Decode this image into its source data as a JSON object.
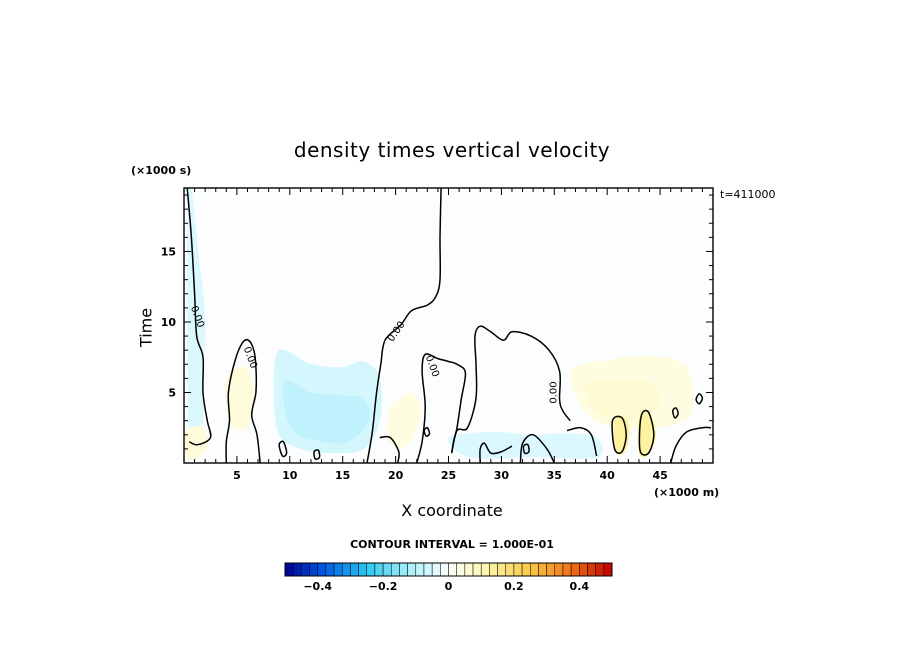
{
  "chart_data": {
    "type": "contour",
    "title": "density times vertical velocity",
    "xlabel": "X coordinate",
    "ylabel": "Time",
    "x_unit": "(×1000 m)",
    "y_unit": "(×1000 s)",
    "time_stamp": "t=411000",
    "xlim": [
      0,
      50
    ],
    "ylim": [
      0,
      19.5
    ],
    "x_ticks": [
      5,
      10,
      15,
      20,
      25,
      30,
      35,
      40,
      45
    ],
    "y_ticks": [
      5,
      10,
      15
    ],
    "contour_interval_text": "CONTOUR INTERVAL = 1.000E-01",
    "contour_label": "0.00",
    "colorbar": {
      "min": -0.5,
      "max": 0.5,
      "n_bins": 40,
      "tick_values": [
        -0.4,
        -0.2,
        0,
        0.2,
        0.4
      ],
      "tick_labels": [
        "−0.4",
        "−0.2",
        "0",
        "0.2",
        "0.4"
      ]
    },
    "zero_contour_label_positions": [
      {
        "x": 1.0,
        "y": 10.3
      },
      {
        "x": 6.0,
        "y": 7.4
      },
      {
        "x": 20.3,
        "y": 9.2
      },
      {
        "x": 23.2,
        "y": 6.8
      },
      {
        "x": 35.2,
        "y": 5.0
      }
    ],
    "fill_regions": [
      {
        "level": -0.05,
        "points": [
          [
            0.4,
            19.5
          ],
          [
            1.5,
            14
          ],
          [
            2,
            10
          ],
          [
            1.8,
            6
          ],
          [
            1.8,
            3
          ],
          [
            0.6,
            2
          ],
          [
            0.4,
            0.8
          ]
        ]
      },
      {
        "level": -0.06,
        "points": [
          [
            9,
            8
          ],
          [
            12,
            7
          ],
          [
            15,
            6.8
          ],
          [
            17,
            7.2
          ],
          [
            18.5,
            6
          ],
          [
            18.5,
            3
          ],
          [
            17,
            1
          ],
          [
            14,
            0.7
          ],
          [
            11,
            1
          ],
          [
            9,
            2
          ],
          [
            8.5,
            5
          ]
        ]
      },
      {
        "level": -0.09,
        "points": [
          [
            9.5,
            5.8
          ],
          [
            12,
            5
          ],
          [
            15,
            4.8
          ],
          [
            17,
            4.5
          ],
          [
            17.5,
            3
          ],
          [
            15.5,
            1.5
          ],
          [
            12.5,
            1.6
          ],
          [
            10,
            2.6
          ]
        ]
      },
      {
        "level": -0.05,
        "points": [
          [
            25,
            1.8
          ],
          [
            29,
            2.2
          ],
          [
            33,
            2
          ],
          [
            36,
            2.1
          ],
          [
            39,
            1.8
          ],
          [
            39,
            0.4
          ],
          [
            33,
            0.4
          ],
          [
            27,
            0.4
          ]
        ]
      },
      {
        "level": 0.04,
        "points": [
          [
            36.5,
            6.5
          ],
          [
            40,
            7.3
          ],
          [
            44,
            7.6
          ],
          [
            47.5,
            6.8
          ],
          [
            48,
            3.5
          ],
          [
            45,
            2.5
          ],
          [
            41,
            2.5
          ],
          [
            38,
            3.5
          ]
        ]
      },
      {
        "level": 0.06,
        "points": [
          [
            38,
            5.5
          ],
          [
            41,
            6
          ],
          [
            44,
            5.7
          ],
          [
            45,
            4
          ],
          [
            42,
            3
          ],
          [
            39,
            3.5
          ]
        ]
      },
      {
        "level": 0.05,
        "points": [
          [
            4,
            6
          ],
          [
            5.8,
            6.8
          ],
          [
            6.6,
            5
          ],
          [
            6,
            2.5
          ],
          [
            4.4,
            2.8
          ]
        ]
      },
      {
        "level": 0.04,
        "points": [
          [
            19.5,
            3.8
          ],
          [
            21.5,
            5
          ],
          [
            22.5,
            3.5
          ],
          [
            21,
            1.2
          ],
          [
            19.3,
            1.6
          ]
        ]
      },
      {
        "level": 0.05,
        "points": [
          [
            0.2,
            2.3
          ],
          [
            1.8,
            2.5
          ],
          [
            2.2,
            1
          ],
          [
            1,
            0.3
          ],
          [
            0.2,
            0.5
          ]
        ]
      },
      {
        "level": 0.13,
        "points": [
          [
            40.7,
            3
          ],
          [
            41.8,
            3.2
          ],
          [
            42.1,
            2
          ],
          [
            41.6,
            0.7
          ],
          [
            40.8,
            0.9
          ]
        ]
      },
      {
        "level": 0.13,
        "points": [
          [
            43,
            3.2
          ],
          [
            44,
            3.5
          ],
          [
            44.6,
            2
          ],
          [
            43.9,
            0.6
          ],
          [
            43,
            0.7
          ]
        ]
      }
    ],
    "zero_contours": [
      {
        "closed": false,
        "points": [
          [
            0.3,
            19.5
          ],
          [
            0.7,
            16
          ],
          [
            1,
            12
          ],
          [
            1.2,
            9
          ],
          [
            1.8,
            7.5
          ],
          [
            1.8,
            5
          ],
          [
            2.2,
            3
          ],
          [
            2.5,
            1.8
          ],
          [
            1.3,
            1.3
          ],
          [
            0.5,
            1.5
          ]
        ]
      },
      {
        "closed": false,
        "points": [
          [
            24.3,
            19.5
          ],
          [
            24.2,
            16
          ],
          [
            24.2,
            13
          ],
          [
            23.8,
            11.8
          ],
          [
            23,
            11.2
          ],
          [
            21.5,
            10.8
          ],
          [
            20.5,
            9.8
          ],
          [
            19,
            8.7
          ],
          [
            18.6,
            7
          ],
          [
            18.2,
            5
          ],
          [
            17.8,
            2.2
          ],
          [
            17.3,
            0
          ]
        ]
      },
      {
        "closed": false,
        "points": [
          [
            4,
            0
          ],
          [
            4,
            1.5
          ],
          [
            4.3,
            3
          ],
          [
            4.2,
            5
          ],
          [
            4.8,
            7.2
          ],
          [
            5.5,
            8.5
          ],
          [
            6.1,
            8.7
          ],
          [
            6.6,
            8
          ],
          [
            6.8,
            6.8
          ],
          [
            6.8,
            5
          ],
          [
            6.4,
            3.4
          ],
          [
            6.9,
            2
          ],
          [
            7.2,
            0
          ]
        ]
      },
      {
        "closed": false,
        "points": [
          [
            22,
            0
          ],
          [
            22.5,
            1.5
          ],
          [
            22.8,
            4
          ],
          [
            22.5,
            6.5
          ],
          [
            22.8,
            7.7
          ],
          [
            24,
            7.4
          ],
          [
            25,
            7.2
          ],
          [
            25.8,
            7
          ],
          [
            26.6,
            6.4
          ],
          [
            26.2,
            4.5
          ],
          [
            25.8,
            2.5
          ],
          [
            25.5,
            1.6
          ],
          [
            25.3,
            0.7
          ]
        ]
      },
      {
        "closed": false,
        "points": [
          [
            25.3,
            0.7
          ],
          [
            25.8,
            2.3
          ],
          [
            26.8,
            2.5
          ],
          [
            27.6,
            4.6
          ],
          [
            27.6,
            7
          ],
          [
            27.5,
            9
          ],
          [
            28,
            9.7
          ],
          [
            29,
            9.3
          ],
          [
            30.2,
            8.7
          ],
          [
            31,
            9.3
          ],
          [
            32.8,
            9
          ],
          [
            34.5,
            8
          ],
          [
            35.5,
            6.5
          ],
          [
            35.5,
            4.5
          ],
          [
            35.8,
            3.7
          ],
          [
            36.5,
            3
          ]
        ]
      },
      {
        "closed": false,
        "points": [
          [
            36.2,
            2.3
          ],
          [
            37.5,
            2.5
          ],
          [
            38.5,
            2
          ],
          [
            39,
            0.5
          ]
        ]
      },
      {
        "closed": false,
        "points": [
          [
            18.5,
            1.8
          ],
          [
            19.5,
            1.8
          ],
          [
            20.3,
            0.8
          ],
          [
            20.2,
            0
          ]
        ]
      },
      {
        "closed": false,
        "points": [
          [
            28,
            0
          ],
          [
            28,
            1
          ],
          [
            28.4,
            1.4
          ],
          [
            29,
            0.7
          ],
          [
            30,
            0.8
          ],
          [
            31,
            1.2
          ]
        ]
      },
      {
        "closed": false,
        "points": [
          [
            31.8,
            0
          ],
          [
            32,
            1.4
          ],
          [
            33,
            2
          ],
          [
            34.3,
            1
          ],
          [
            35,
            0
          ]
        ]
      },
      {
        "closed": true,
        "points": [
          [
            40.5,
            3
          ],
          [
            41.4,
            3.2
          ],
          [
            41.8,
            2
          ],
          [
            41.4,
            0.8
          ],
          [
            40.7,
            1
          ]
        ]
      },
      {
        "closed": true,
        "points": [
          [
            43.2,
            3.3
          ],
          [
            43.9,
            3.6
          ],
          [
            44.4,
            2
          ],
          [
            43.9,
            0.7
          ],
          [
            43.1,
            0.9
          ]
        ]
      },
      {
        "closed": false,
        "points": [
          [
            46,
            0
          ],
          [
            46.5,
            1.2
          ],
          [
            47.5,
            2.2
          ],
          [
            49,
            2.5
          ],
          [
            49.8,
            2.5
          ]
        ]
      },
      {
        "closed": true,
        "points": [
          [
            46.2,
            3.7
          ],
          [
            46.5,
            3.9
          ],
          [
            46.7,
            3.5
          ],
          [
            46.4,
            3.2
          ]
        ]
      },
      {
        "closed": true,
        "points": [
          [
            48.4,
            4.5
          ],
          [
            48.7,
            4.9
          ],
          [
            49,
            4.6
          ],
          [
            48.7,
            4.2
          ]
        ]
      },
      {
        "closed": true,
        "points": [
          [
            9,
            1.3
          ],
          [
            9.4,
            1.5
          ],
          [
            9.7,
            0.7
          ],
          [
            9.3,
            0.5
          ]
        ]
      },
      {
        "closed": true,
        "points": [
          [
            12.3,
            0.8
          ],
          [
            12.7,
            0.9
          ],
          [
            12.8,
            0.4
          ],
          [
            12.4,
            0.3
          ]
        ]
      },
      {
        "closed": true,
        "points": [
          [
            32.1,
            1.2
          ],
          [
            32.5,
            1.3
          ],
          [
            32.6,
            0.8
          ],
          [
            32.2,
            0.7
          ]
        ]
      },
      {
        "closed": true,
        "points": [
          [
            22.7,
            2.3
          ],
          [
            23,
            2.5
          ],
          [
            23.2,
            2.1
          ],
          [
            22.9,
            1.9
          ]
        ]
      }
    ]
  }
}
